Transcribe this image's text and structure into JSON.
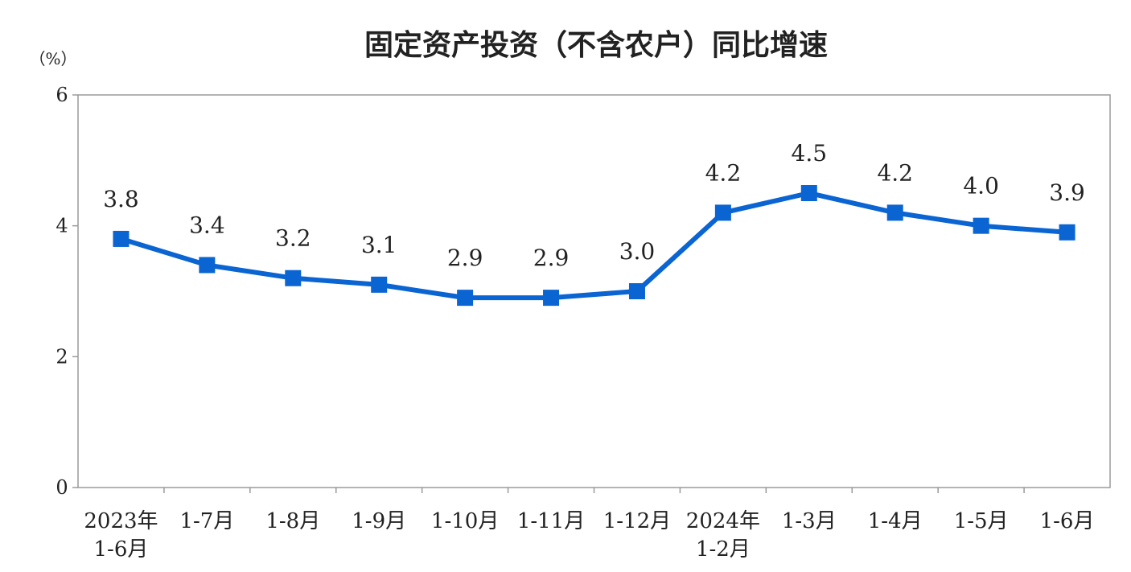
{
  "chart_data": {
    "type": "line",
    "title": "固定资产投资（不含农户）同比增速",
    "unit_label": "（%）",
    "xlabel": "",
    "ylabel": "",
    "ylim": [
      0,
      6
    ],
    "yticks": [
      0,
      2,
      4,
      6
    ],
    "grid": false,
    "legend": "none",
    "categories": [
      [
        "2023年",
        "1-6月"
      ],
      [
        "1-7月"
      ],
      [
        "1-8月"
      ],
      [
        "1-9月"
      ],
      [
        "1-10月"
      ],
      [
        "1-11月"
      ],
      [
        "1-12月"
      ],
      [
        "2024年",
        "1-2月"
      ],
      [
        "1-3月"
      ],
      [
        "1-4月"
      ],
      [
        "1-5月"
      ],
      [
        "1-6月"
      ]
    ],
    "series": [
      {
        "values": [
          3.8,
          3.4,
          3.2,
          3.1,
          2.9,
          2.9,
          3.0,
          4.2,
          4.5,
          4.2,
          4.0,
          3.9
        ],
        "data_labels": [
          "3.8",
          "3.4",
          "3.2",
          "3.1",
          "2.9",
          "2.9",
          "3.0",
          "4.2",
          "4.5",
          "4.2",
          "4.0",
          "3.9"
        ],
        "color": "#0a64d2"
      }
    ],
    "axis_color": "#9a9a9a"
  }
}
